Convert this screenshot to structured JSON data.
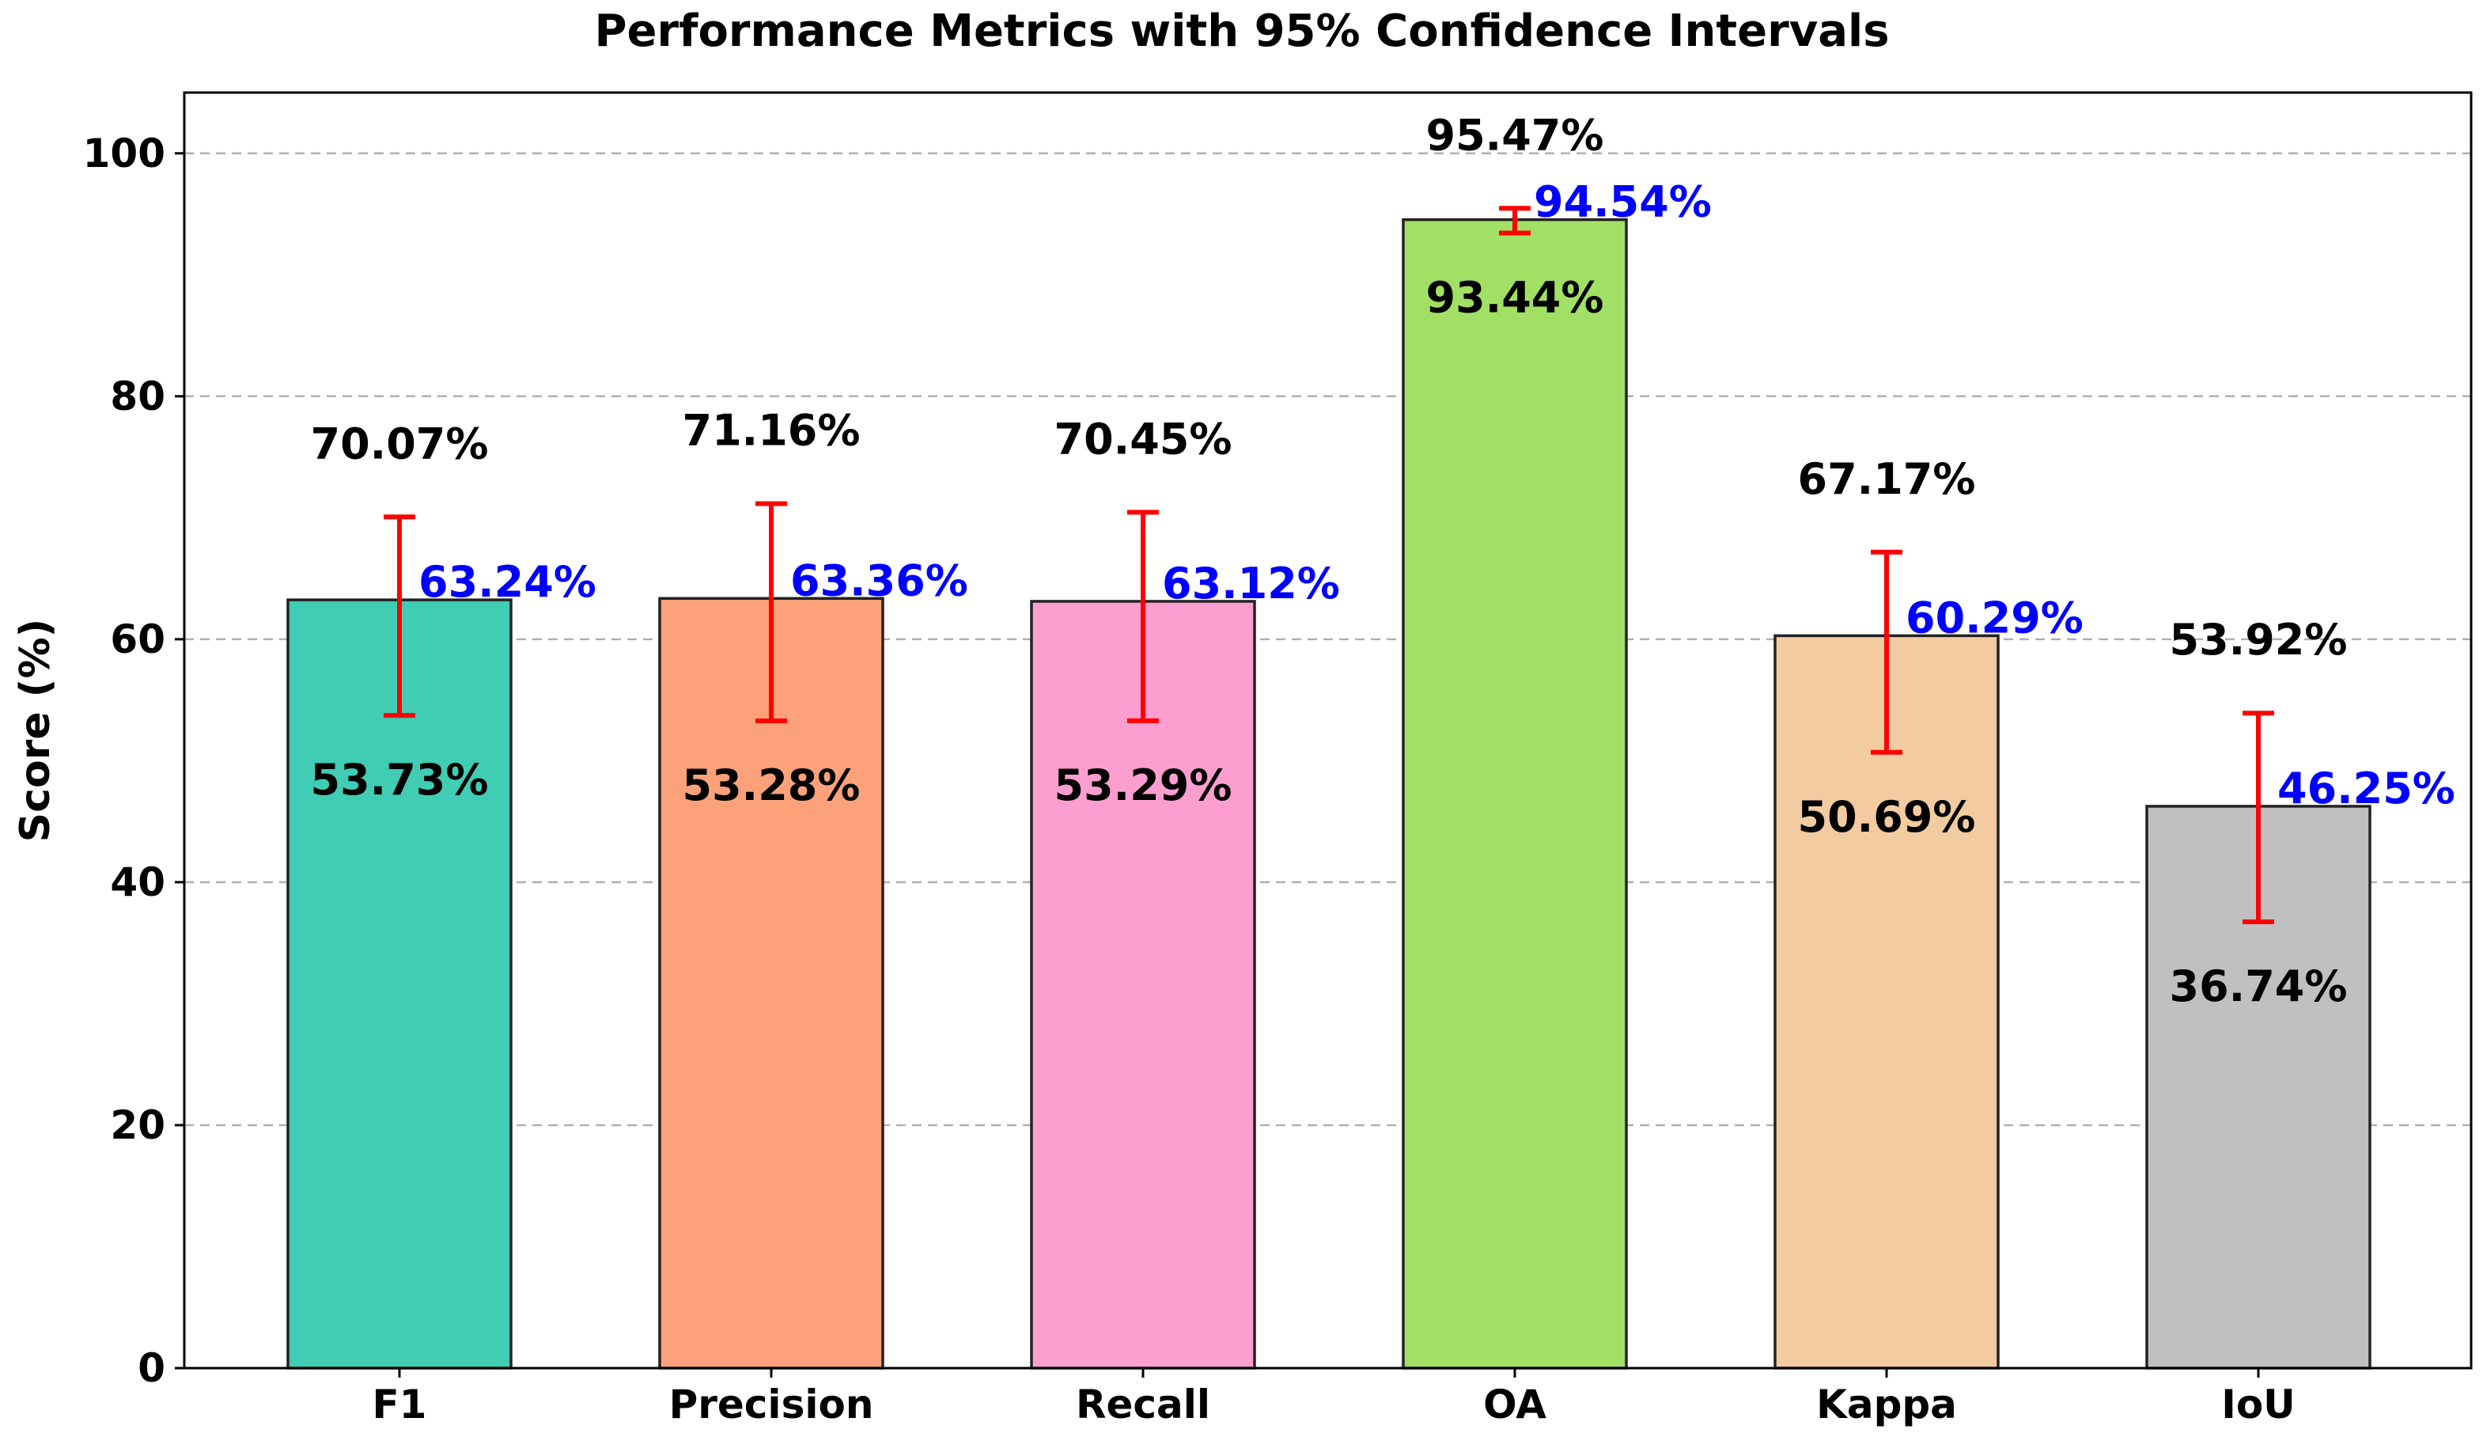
{
  "chart_data": {
    "type": "bar",
    "title": "Performance Metrics with 95% Confidence Intervals",
    "xlabel": "",
    "ylabel": "Score (%)",
    "ylim": [
      0,
      105
    ],
    "yticks": [
      0,
      20,
      40,
      60,
      80,
      100
    ],
    "grid": "y-dashed",
    "categories": [
      "F1",
      "Precision",
      "Recall",
      "OA",
      "Kappa",
      "IoU"
    ],
    "values": [
      63.24,
      63.36,
      63.12,
      94.54,
      60.29,
      46.25
    ],
    "ci_lower": [
      53.73,
      53.28,
      53.29,
      93.44,
      50.69,
      36.74
    ],
    "ci_upper": [
      70.07,
      71.16,
      70.45,
      95.47,
      67.17,
      53.92
    ],
    "value_labels": [
      "63.24%",
      "63.36%",
      "63.12%",
      "94.54%",
      "60.29%",
      "46.25%"
    ],
    "lower_labels": [
      "53.73%",
      "53.28%",
      "53.29%",
      "93.44%",
      "50.69%",
      "36.74%"
    ],
    "upper_labels": [
      "70.07%",
      "71.16%",
      "70.45%",
      "95.47%",
      "67.17%",
      "53.92%"
    ],
    "colors": [
      "#40cdb4",
      "#fca179",
      "#fc9ecf",
      "#a2e065",
      "#f2cba0",
      "#c0c0c0"
    ],
    "error_bar_color": "#ff0000",
    "value_label_color": "#0000ff"
  }
}
